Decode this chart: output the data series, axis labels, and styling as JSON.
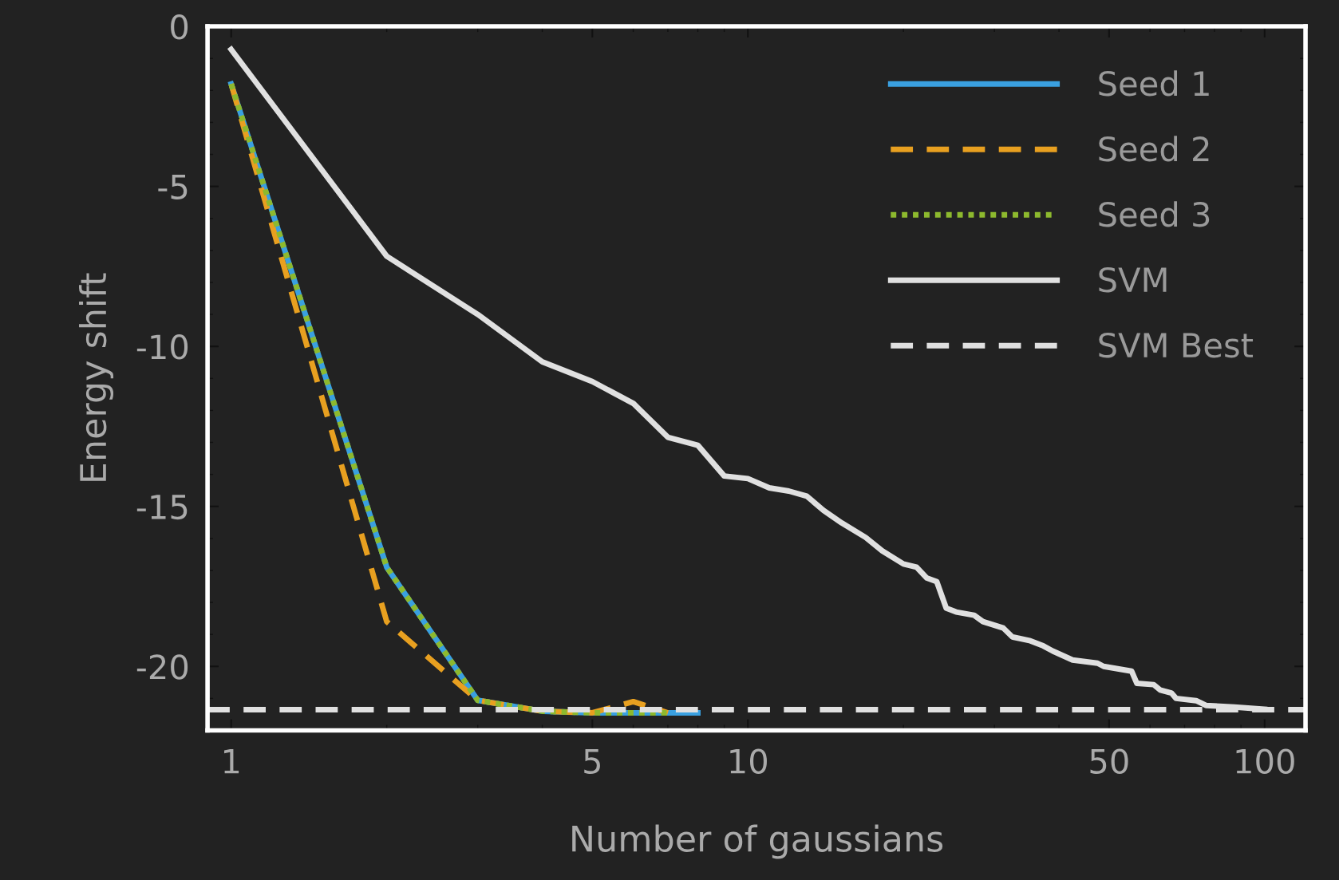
{
  "chart_data": {
    "type": "line",
    "xlabel": "Number of gaussians",
    "ylabel": "Energy shift",
    "log": "x",
    "xlim": [
      0.9,
      120
    ],
    "xticks": [
      1,
      5,
      10,
      50,
      100
    ],
    "ylim": [
      -22,
      0
    ],
    "yticks": [
      {
        "value": 0,
        "label": "0"
      },
      {
        "value": -5,
        "label": "-5"
      },
      {
        "value": -10,
        "label": "-10"
      },
      {
        "value": -15,
        "label": "-15"
      },
      {
        "value": -20,
        "label": "-20"
      }
    ],
    "grid": false,
    "legend": "top right",
    "marker": "none",
    "series": [
      {
        "name": "Seed 1",
        "color": "#3aa0e0",
        "line_style": "solid",
        "x": [
          1,
          2,
          3,
          4,
          5,
          6,
          7,
          8
        ],
        "values": [
          -1.8,
          -16.9,
          -21.06,
          -21.4,
          -21.45,
          -21.45,
          -21.45,
          -21.45
        ]
      },
      {
        "name": "Seed 2",
        "color": "#e8a020",
        "line_style": "dashed",
        "x": [
          1,
          2,
          3,
          4,
          5,
          6,
          7
        ],
        "values": [
          -1.8,
          -18.6,
          -21.06,
          -21.4,
          -21.45,
          -21.1,
          -21.45
        ]
      },
      {
        "name": "Seed 3",
        "color": "#8db92e",
        "line_style": "dotted",
        "x": [
          1,
          2,
          3,
          4,
          5,
          6,
          7
        ],
        "values": [
          -1.8,
          -16.9,
          -21.06,
          -21.4,
          -21.45,
          -21.45,
          -21.45
        ]
      },
      {
        "name": "SVM",
        "color": "#e0e0e0",
        "line_style": "solid",
        "x": [
          1,
          2,
          3,
          4,
          5,
          6,
          7,
          8,
          9,
          10,
          11,
          12,
          13,
          14,
          15.2,
          16.9,
          18.2,
          20,
          21.2,
          22.2,
          23.2,
          24.2,
          25.3,
          27.4,
          28.5,
          31.2,
          32.5,
          35.2,
          37.3,
          38.9,
          42.5,
          47.5,
          48.8,
          55.3,
          56.6,
          61,
          62.8,
          66,
          67.4,
          73.7,
          77,
          87.4,
          100
        ],
        "values": [
          -0.72,
          -7.18,
          -9.0,
          -10.48,
          -11.1,
          -11.78,
          -12.84,
          -13.09,
          -14.05,
          -14.13,
          -14.42,
          -14.52,
          -14.68,
          -15.12,
          -15.52,
          -15.97,
          -16.39,
          -16.8,
          -16.9,
          -17.24,
          -17.35,
          -18.18,
          -18.3,
          -18.4,
          -18.6,
          -18.8,
          -19.08,
          -19.2,
          -19.36,
          -19.52,
          -19.8,
          -19.9,
          -20.0,
          -20.15,
          -20.53,
          -20.57,
          -20.74,
          -20.83,
          -21.0,
          -21.07,
          -21.22,
          -21.27,
          -21.34
        ]
      },
      {
        "name": "SVM Best",
        "color": "#e0e0e0",
        "line_style": "dashed",
        "x": [
          0.9,
          120
        ],
        "values": [
          -21.35,
          -21.35
        ]
      }
    ]
  }
}
